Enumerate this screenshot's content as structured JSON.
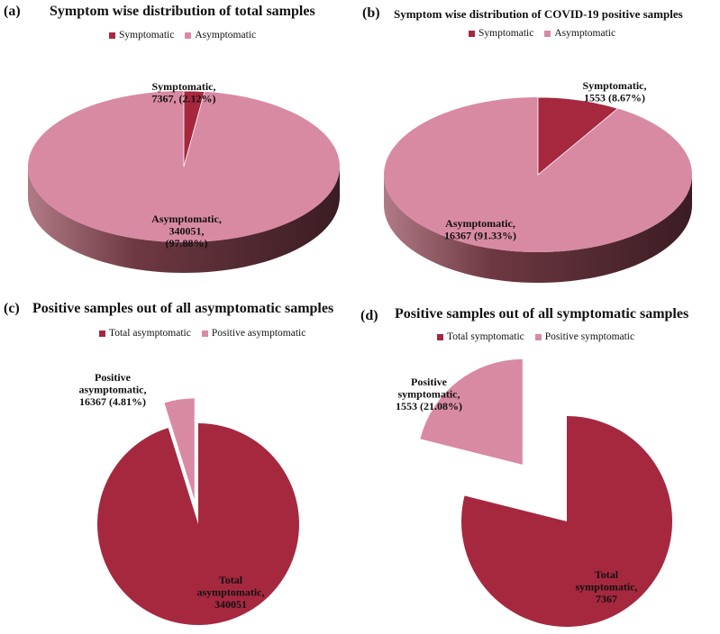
{
  "colors": {
    "symptomatic": "#a6283f",
    "asymptomatic": "#d98aa3",
    "side_light": "#b07a86",
    "side_dark": "#3a1c22"
  },
  "chart_data": [
    {
      "panel": "(a)",
      "type": "pie",
      "title": "Symptom wise distribution of total samples",
      "legend": [
        "Symptomatic",
        "Asymptomatic"
      ],
      "slices": [
        {
          "label": "Symptomatic",
          "value": 7367,
          "percent": 2.12,
          "text": [
            "Symptomatic,",
            "7367, (2.12%)"
          ]
        },
        {
          "label": "Asymptomatic",
          "value": 340051,
          "percent": 97.88,
          "text": [
            "Asymptomatic,",
            "340051,",
            "(97.88%)"
          ]
        }
      ]
    },
    {
      "panel": "(b)",
      "type": "pie",
      "title": "Symptom wise distribution of COVID-19 positive samples",
      "legend": [
        "Symptomatic",
        "Asymptomatic"
      ],
      "slices": [
        {
          "label": "Symptomatic",
          "value": 1553,
          "percent": 8.67,
          "text": [
            "Symptomatic,",
            "1553 (8.67%)"
          ]
        },
        {
          "label": "Asymptomatic",
          "value": 16367,
          "percent": 91.33,
          "text": [
            "Asymptomatic,",
            "16367 (91.33%)"
          ]
        }
      ]
    },
    {
      "panel": "(c)",
      "type": "pie",
      "title": "Positive samples out of all asymptomatic samples",
      "legend": [
        "Total asymptomatic",
        "Positive asymptomatic"
      ],
      "slices": [
        {
          "label": "Total asymptomatic",
          "value": 340051,
          "percent": 95.19,
          "text": [
            "Total",
            "asymptomatic,",
            "340051"
          ]
        },
        {
          "label": "Positive asymptomatic",
          "value": 16367,
          "percent": 4.81,
          "text": [
            "Positive",
            "asymptomatic,",
            "16367 (4.81%)"
          ]
        }
      ]
    },
    {
      "panel": "(d)",
      "type": "pie",
      "title": "Positive samples out of all symptomatic samples",
      "legend": [
        "Total symptomatic",
        "Positive symptomatic"
      ],
      "slices": [
        {
          "label": "Total symptomatic",
          "value": 7367,
          "percent": 78.92,
          "text": [
            "Total",
            "symptomatic,",
            "7367"
          ]
        },
        {
          "label": "Positive symptomatic",
          "value": 1553,
          "percent": 21.08,
          "text": [
            "Positive",
            "symptomatic,",
            "1553 (21.08%)"
          ]
        }
      ]
    }
  ]
}
